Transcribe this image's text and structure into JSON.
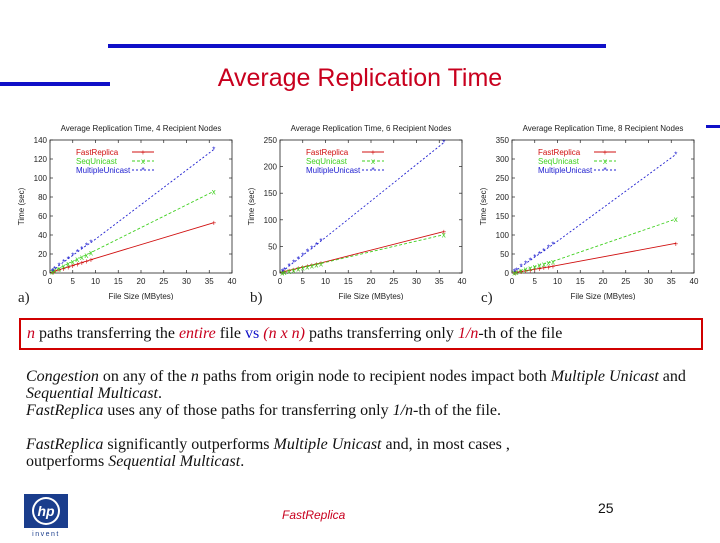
{
  "slide": {
    "title": "Average Replication Time",
    "page_number": "25",
    "footer": "FastReplica",
    "logo_text": "invent",
    "boxed_line": {
      "n1": "n",
      "t1": " paths transferring the ",
      "entire": "entire",
      "t2": " file ",
      "vs": "vs",
      "nxn": " (n x n)",
      "t3": " paths transferring  only ",
      "frac": "1/n",
      "t4": "-th of the file"
    },
    "para1": {
      "congestion": "Congestion",
      "t1": " on any of the ",
      "n": "n",
      "t2": " paths from origin node to recipient nodes impact both ",
      "mu": "Multiple Unicast",
      "t3": " and ",
      "sm": "Sequential Multicast",
      "t4": ".",
      "fr": "FastReplica",
      "t5": "  uses any of those paths for transferring  only ",
      "frac": "1/n",
      "t6": "-th of the file."
    },
    "para2": {
      "fr": "FastReplica",
      "t1": " significantly outperforms ",
      "mu": "Multiple Unicast",
      "t2": "  and, in most cases ,",
      "t3": "outperforms ",
      "sm": "Sequential Multicast",
      "t4": "."
    }
  },
  "colors": {
    "accent_blue": "#1010c8",
    "title_red": "#c8001e",
    "fastreplica": "#d01010",
    "sequnicast": "#40d020",
    "multipleunicast": "#2020d0"
  },
  "chart_data": [
    {
      "type": "line",
      "panel": "a)",
      "title": "Average Replication Time, 4 Recipient Nodes",
      "xlabel": "File Size (MBytes)",
      "ylabel": "Time (sec)",
      "xlim": [
        0,
        40
      ],
      "ylim": [
        0,
        140
      ],
      "xticks": [
        0,
        5,
        10,
        15,
        20,
        25,
        30,
        35,
        40
      ],
      "yticks": [
        0,
        20,
        40,
        60,
        80,
        100,
        120,
        140
      ],
      "legend": "top-left",
      "x": [
        0.5,
        1,
        2,
        3,
        4,
        5,
        6,
        7,
        8,
        9,
        36
      ],
      "series": [
        {
          "name": "FastReplica",
          "values": [
            1,
            2,
            3.5,
            5,
            6.5,
            8,
            9.5,
            11,
            12.5,
            14,
            53
          ]
        },
        {
          "name": "SeqUnicast",
          "values": [
            1.5,
            3,
            5,
            7.5,
            10,
            12,
            14.5,
            17,
            19,
            21.5,
            86
          ]
        },
        {
          "name": "MultipleUnicast",
          "values": [
            2,
            4,
            8,
            11.5,
            15,
            18.5,
            22,
            25.5,
            29,
            32,
            130
          ]
        }
      ]
    },
    {
      "type": "line",
      "panel": "b)",
      "title": "Average Replication Time, 6 Recipient Nodes",
      "xlabel": "File Size (MBytes)",
      "ylabel": "Time (sec)",
      "xlim": [
        0,
        40
      ],
      "ylim": [
        0,
        250
      ],
      "xticks": [
        0,
        5,
        10,
        15,
        20,
        25,
        30,
        35,
        40
      ],
      "yticks": [
        0,
        50,
        100,
        150,
        200,
        250
      ],
      "legend": "top-left",
      "x": [
        0.5,
        1,
        2,
        3,
        4,
        5,
        6,
        7,
        8,
        9,
        36
      ],
      "series": [
        {
          "name": "FastReplica",
          "values": [
            1.5,
            3,
            5,
            7,
            9,
            11,
            13,
            15,
            17,
            19,
            78
          ]
        },
        {
          "name": "SeqUnicast",
          "values": [
            1,
            2,
            4,
            6,
            8,
            10,
            12,
            14,
            16,
            18,
            72
          ]
        },
        {
          "name": "MultipleUnicast",
          "values": [
            3,
            6,
            13,
            20,
            26,
            33,
            40,
            46,
            53,
            60,
            245
          ]
        }
      ]
    },
    {
      "type": "line",
      "panel": "c)",
      "title": "Average Replication Time, 8 Recipient Nodes",
      "xlabel": "File Size (MBytes)",
      "ylabel": "Time (sec)",
      "xlim": [
        0,
        40
      ],
      "ylim": [
        0,
        350
      ],
      "xticks": [
        0,
        5,
        10,
        15,
        20,
        25,
        30,
        35,
        40
      ],
      "yticks": [
        0,
        50,
        100,
        150,
        200,
        250,
        300,
        350
      ],
      "legend": "top-left",
      "x": [
        0.5,
        1,
        2,
        3,
        4,
        5,
        6,
        7,
        8,
        9,
        36
      ],
      "series": [
        {
          "name": "FastReplica",
          "values": [
            1,
            2,
            4,
            6,
            8,
            10,
            12,
            14,
            16,
            18,
            78
          ]
        },
        {
          "name": "SeqUnicast",
          "values": [
            1.5,
            3,
            7,
            10,
            13.5,
            17,
            20.5,
            24,
            27,
            30.5,
            142
          ]
        },
        {
          "name": "MultipleUnicast",
          "values": [
            3.5,
            7,
            17,
            25,
            33,
            42,
            50,
            58,
            67,
            75,
            312
          ]
        }
      ]
    }
  ]
}
